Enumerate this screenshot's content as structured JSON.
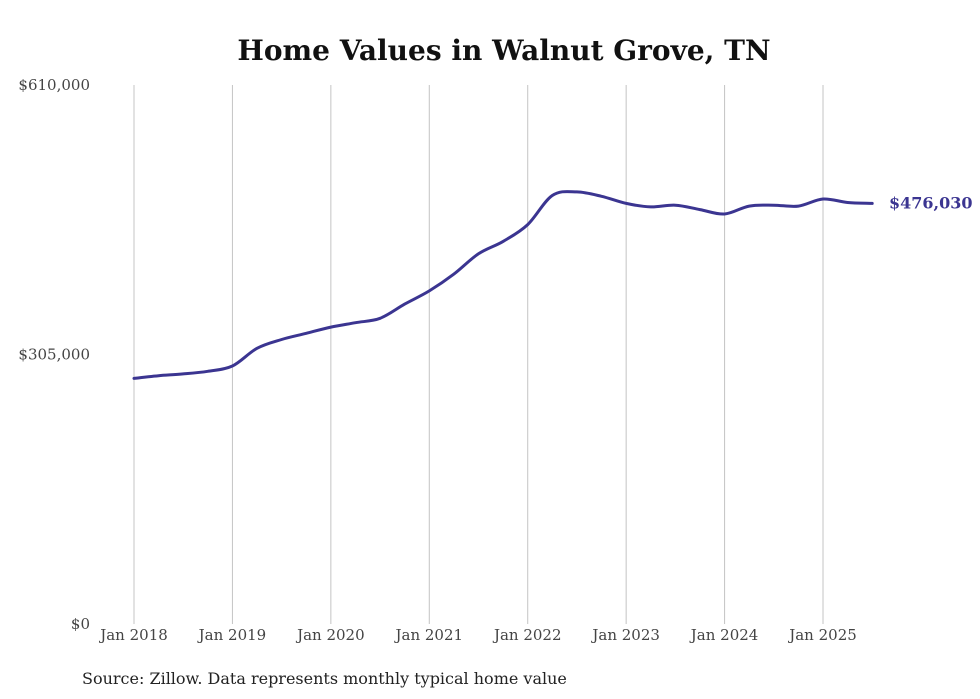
{
  "chart_data": {
    "type": "line",
    "title": "Home Values in Walnut Grove, TN",
    "source": "Source: Zillow. Data represents monthly typical home value",
    "y_ticks": [
      {
        "value": 0,
        "label": "$0"
      },
      {
        "value": 305000,
        "label": "$305,000"
      },
      {
        "value": 610000,
        "label": "$610,000"
      }
    ],
    "x_ticks": [
      "Jan 2018",
      "Jan 2019",
      "Jan 2020",
      "Jan 2021",
      "Jan 2022",
      "Jan 2023",
      "Jan 2024",
      "Jan 2025"
    ],
    "ylim": [
      0,
      610000
    ],
    "grid": "vertical",
    "line_color": "#3b3591",
    "end_label": "$476,030",
    "series": [
      {
        "x": [
          "2018-01",
          "2018-04",
          "2018-07",
          "2018-10",
          "2019-01",
          "2019-04",
          "2019-07",
          "2019-10",
          "2020-01",
          "2020-04",
          "2020-07",
          "2020-10",
          "2021-01",
          "2021-04",
          "2021-07",
          "2021-10",
          "2022-01",
          "2022-04",
          "2022-07",
          "2022-10",
          "2023-01",
          "2023-04",
          "2023-07",
          "2023-10",
          "2024-01",
          "2024-04",
          "2024-07",
          "2024-10",
          "2025-01",
          "2025-04",
          "2025-07"
        ],
        "values": [
          278000,
          281000,
          283000,
          286000,
          292000,
          312000,
          322000,
          329000,
          336000,
          341000,
          346000,
          362000,
          377000,
          396000,
          419000,
          433000,
          452000,
          485000,
          489000,
          484000,
          476000,
          472000,
          474000,
          469000,
          464000,
          473000,
          474000,
          473000,
          481000,
          477000,
          476030
        ]
      }
    ]
  }
}
